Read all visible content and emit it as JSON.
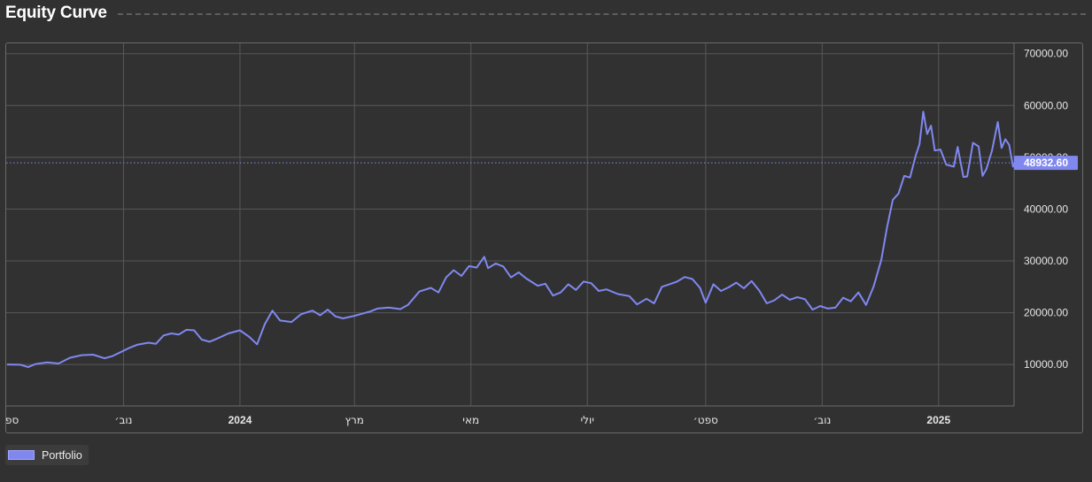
{
  "header": {
    "title": "Equity Curve"
  },
  "legend": {
    "label": "Portfolio"
  },
  "colors": {
    "line": "#8088f0",
    "background": "#313131",
    "grid": "#5a5a5a",
    "text": "#e6e6e6"
  },
  "chart_data": {
    "type": "line",
    "title": "Equity Curve",
    "xlabel": "",
    "ylabel": "",
    "xlim": [
      "2023-09-01",
      "2025-02-10"
    ],
    "ylim": [
      2000,
      72000
    ],
    "grid": true,
    "legend_position": "bottom-left",
    "y_ticks": [
      "70000.00",
      "60000.00",
      "50000.00",
      "40000.00",
      "30000.00",
      "20000.00",
      "10000.00"
    ],
    "x_ticks": [
      {
        "label": "ספ",
        "date": "2023-09-01",
        "bold": false
      },
      {
        "label": "נוב׳",
        "date": "2023-11-01",
        "bold": false
      },
      {
        "label": "2024",
        "date": "2024-01-01",
        "bold": true
      },
      {
        "label": "מרץ",
        "date": "2024-03-01",
        "bold": false
      },
      {
        "label": "מאי",
        "date": "2024-05-01",
        "bold": false
      },
      {
        "label": "יולי",
        "date": "2024-07-01",
        "bold": false
      },
      {
        "label": "ספט׳",
        "date": "2024-09-01",
        "bold": false
      },
      {
        "label": "נוב׳",
        "date": "2024-11-01",
        "bold": false
      },
      {
        "label": "2025",
        "date": "2025-01-01",
        "bold": true
      }
    ],
    "last_value_label": "48932.60",
    "last_value": 48932.6,
    "series": [
      {
        "name": "Portfolio",
        "points": [
          [
            "2023-09-01",
            10000
          ],
          [
            "2023-09-08",
            9950
          ],
          [
            "2023-09-12",
            9500
          ],
          [
            "2023-09-16",
            10100
          ],
          [
            "2023-09-22",
            10400
          ],
          [
            "2023-09-28",
            10200
          ],
          [
            "2023-10-04",
            11300
          ],
          [
            "2023-10-10",
            11800
          ],
          [
            "2023-10-16",
            11900
          ],
          [
            "2023-10-22",
            11200
          ],
          [
            "2023-10-26",
            11600
          ],
          [
            "2023-10-30",
            12300
          ],
          [
            "2023-11-04",
            13200
          ],
          [
            "2023-11-08",
            13800
          ],
          [
            "2023-11-14",
            14200
          ],
          [
            "2023-11-18",
            14000
          ],
          [
            "2023-11-22",
            15600
          ],
          [
            "2023-11-26",
            16000
          ],
          [
            "2023-11-30",
            15800
          ],
          [
            "2023-12-04",
            16700
          ],
          [
            "2023-12-08",
            16600
          ],
          [
            "2023-12-12",
            14800
          ],
          [
            "2023-12-16",
            14400
          ],
          [
            "2023-12-20",
            15000
          ],
          [
            "2023-12-26",
            16000
          ],
          [
            "2024-01-01",
            16600
          ],
          [
            "2024-01-06",
            15300
          ],
          [
            "2024-01-10",
            13900
          ],
          [
            "2024-01-14",
            17800
          ],
          [
            "2024-01-18",
            20400
          ],
          [
            "2024-01-22",
            18500
          ],
          [
            "2024-01-28",
            18200
          ],
          [
            "2024-02-02",
            19700
          ],
          [
            "2024-02-08",
            20400
          ],
          [
            "2024-02-12",
            19500
          ],
          [
            "2024-02-16",
            20600
          ],
          [
            "2024-02-20",
            19300
          ],
          [
            "2024-02-24",
            18900
          ],
          [
            "2024-03-01",
            19400
          ],
          [
            "2024-03-05",
            19800
          ],
          [
            "2024-03-09",
            20200
          ],
          [
            "2024-03-13",
            20800
          ],
          [
            "2024-03-19",
            21000
          ],
          [
            "2024-03-25",
            20700
          ],
          [
            "2024-03-29",
            21500
          ],
          [
            "2024-04-04",
            24100
          ],
          [
            "2024-04-10",
            24800
          ],
          [
            "2024-04-14",
            23900
          ],
          [
            "2024-04-18",
            26800
          ],
          [
            "2024-04-22",
            28200
          ],
          [
            "2024-04-26",
            27100
          ],
          [
            "2024-04-30",
            29000
          ],
          [
            "2024-05-04",
            28700
          ],
          [
            "2024-05-08",
            30800
          ],
          [
            "2024-05-10",
            28600
          ],
          [
            "2024-05-14",
            29500
          ],
          [
            "2024-05-18",
            28900
          ],
          [
            "2024-05-22",
            26800
          ],
          [
            "2024-05-26",
            27800
          ],
          [
            "2024-05-30",
            26600
          ],
          [
            "2024-06-05",
            25200
          ],
          [
            "2024-06-09",
            25600
          ],
          [
            "2024-06-13",
            23300
          ],
          [
            "2024-06-17",
            23900
          ],
          [
            "2024-06-21",
            25500
          ],
          [
            "2024-06-25",
            24400
          ],
          [
            "2024-06-29",
            26000
          ],
          [
            "2024-07-03",
            25700
          ],
          [
            "2024-07-07",
            24200
          ],
          [
            "2024-07-11",
            24500
          ],
          [
            "2024-07-17",
            23600
          ],
          [
            "2024-07-23",
            23200
          ],
          [
            "2024-07-27",
            21600
          ],
          [
            "2024-08-01",
            22700
          ],
          [
            "2024-08-05",
            21800
          ],
          [
            "2024-08-09",
            25000
          ],
          [
            "2024-08-13",
            25500
          ],
          [
            "2024-08-17",
            26000
          ],
          [
            "2024-08-21",
            26900
          ],
          [
            "2024-08-25",
            26500
          ],
          [
            "2024-08-29",
            24800
          ],
          [
            "2024-09-01",
            21900
          ],
          [
            "2024-09-05",
            25500
          ],
          [
            "2024-09-09",
            24200
          ],
          [
            "2024-09-13",
            24900
          ],
          [
            "2024-09-17",
            25800
          ],
          [
            "2024-09-21",
            24700
          ],
          [
            "2024-09-25",
            26100
          ],
          [
            "2024-09-29",
            24300
          ],
          [
            "2024-10-03",
            21800
          ],
          [
            "2024-10-07",
            22400
          ],
          [
            "2024-10-11",
            23500
          ],
          [
            "2024-10-15",
            22500
          ],
          [
            "2024-10-19",
            23000
          ],
          [
            "2024-10-23",
            22600
          ],
          [
            "2024-10-27",
            20600
          ],
          [
            "2024-10-31",
            21300
          ],
          [
            "2024-11-04",
            20800
          ],
          [
            "2024-11-08",
            21000
          ],
          [
            "2024-11-12",
            22900
          ],
          [
            "2024-11-16",
            22200
          ],
          [
            "2024-11-20",
            23900
          ],
          [
            "2024-11-24",
            21500
          ],
          [
            "2024-11-28",
            25100
          ],
          [
            "2024-12-02",
            30200
          ],
          [
            "2024-12-05",
            36500
          ],
          [
            "2024-12-08",
            41800
          ],
          [
            "2024-12-11",
            43000
          ],
          [
            "2024-12-14",
            46400
          ],
          [
            "2024-12-17",
            46100
          ],
          [
            "2024-12-20",
            50300
          ],
          [
            "2024-12-22",
            52500
          ],
          [
            "2024-12-24",
            58800
          ],
          [
            "2024-12-26",
            54500
          ],
          [
            "2024-12-28",
            56100
          ],
          [
            "2024-12-30",
            51300
          ],
          [
            "2025-01-02",
            51500
          ],
          [
            "2025-01-05",
            48600
          ],
          [
            "2025-01-09",
            48200
          ],
          [
            "2025-01-11",
            52000
          ],
          [
            "2025-01-14",
            46200
          ],
          [
            "2025-01-16",
            46300
          ],
          [
            "2025-01-19",
            52800
          ],
          [
            "2025-01-22",
            52100
          ],
          [
            "2025-01-24",
            46400
          ],
          [
            "2025-01-26",
            47700
          ],
          [
            "2025-01-29",
            51300
          ],
          [
            "2025-02-01",
            56800
          ],
          [
            "2025-02-03",
            51800
          ],
          [
            "2025-02-05",
            53500
          ],
          [
            "2025-02-07",
            52400
          ],
          [
            "2025-02-09",
            48200
          ],
          [
            "2025-02-10",
            48932.6
          ]
        ]
      }
    ]
  }
}
